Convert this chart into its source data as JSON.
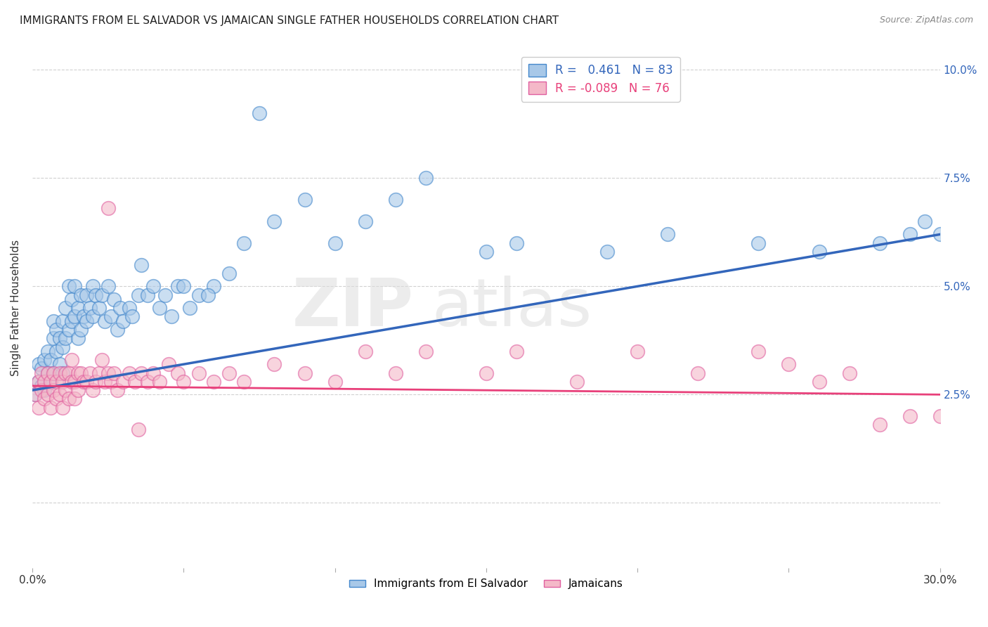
{
  "title": "IMMIGRANTS FROM EL SALVADOR VS JAMAICAN SINGLE FATHER HOUSEHOLDS CORRELATION CHART",
  "source": "Source: ZipAtlas.com",
  "ylabel": "Single Father Households",
  "xlim": [
    0.0,
    0.3
  ],
  "ylim": [
    -0.015,
    0.105
  ],
  "blue_color": "#a8c8e8",
  "pink_color": "#f4b8c8",
  "blue_edge_color": "#4488cc",
  "pink_edge_color": "#e060a0",
  "blue_line_color": "#3366bb",
  "pink_line_color": "#e8407a",
  "legend_blue_label": "R =   0.461   N = 83",
  "legend_pink_label": "R = -0.089   N = 76",
  "legend_blue_series": "Immigrants from El Salvador",
  "legend_pink_series": "Jamaicans",
  "watermark": "ZIPatlas",
  "blue_line_x0": 0.0,
  "blue_line_y0": 0.026,
  "blue_line_x1": 0.3,
  "blue_line_y1": 0.062,
  "pink_line_x0": 0.0,
  "pink_line_y0": 0.027,
  "pink_line_x1": 0.3,
  "pink_line_y1": 0.025,
  "blue_scatter_x": [
    0.001,
    0.002,
    0.002,
    0.003,
    0.003,
    0.004,
    0.004,
    0.005,
    0.005,
    0.006,
    0.006,
    0.007,
    0.007,
    0.007,
    0.008,
    0.008,
    0.009,
    0.009,
    0.01,
    0.01,
    0.01,
    0.011,
    0.011,
    0.012,
    0.012,
    0.013,
    0.013,
    0.014,
    0.014,
    0.015,
    0.015,
    0.016,
    0.016,
    0.017,
    0.018,
    0.018,
    0.019,
    0.02,
    0.02,
    0.021,
    0.022,
    0.023,
    0.024,
    0.025,
    0.026,
    0.027,
    0.028,
    0.029,
    0.03,
    0.032,
    0.033,
    0.035,
    0.036,
    0.038,
    0.04,
    0.042,
    0.044,
    0.046,
    0.048,
    0.05,
    0.055,
    0.06,
    0.065,
    0.07,
    0.08,
    0.09,
    0.1,
    0.11,
    0.12,
    0.13,
    0.15,
    0.16,
    0.19,
    0.21,
    0.24,
    0.26,
    0.28,
    0.29,
    0.295,
    0.3,
    0.052,
    0.058,
    0.075
  ],
  "blue_scatter_y": [
    0.025,
    0.028,
    0.032,
    0.027,
    0.031,
    0.026,
    0.033,
    0.03,
    0.035,
    0.028,
    0.033,
    0.03,
    0.038,
    0.042,
    0.035,
    0.04,
    0.032,
    0.038,
    0.03,
    0.036,
    0.042,
    0.038,
    0.045,
    0.04,
    0.05,
    0.042,
    0.047,
    0.043,
    0.05,
    0.038,
    0.045,
    0.04,
    0.048,
    0.043,
    0.042,
    0.048,
    0.045,
    0.05,
    0.043,
    0.048,
    0.045,
    0.048,
    0.042,
    0.05,
    0.043,
    0.047,
    0.04,
    0.045,
    0.042,
    0.045,
    0.043,
    0.048,
    0.055,
    0.048,
    0.05,
    0.045,
    0.048,
    0.043,
    0.05,
    0.05,
    0.048,
    0.05,
    0.053,
    0.06,
    0.065,
    0.07,
    0.06,
    0.065,
    0.07,
    0.075,
    0.058,
    0.06,
    0.058,
    0.062,
    0.06,
    0.058,
    0.06,
    0.062,
    0.065,
    0.062,
    0.045,
    0.048,
    0.09
  ],
  "pink_scatter_x": [
    0.001,
    0.002,
    0.002,
    0.003,
    0.003,
    0.004,
    0.004,
    0.005,
    0.005,
    0.006,
    0.006,
    0.007,
    0.007,
    0.008,
    0.008,
    0.009,
    0.009,
    0.01,
    0.01,
    0.011,
    0.011,
    0.012,
    0.012,
    0.013,
    0.013,
    0.014,
    0.014,
    0.015,
    0.015,
    0.016,
    0.017,
    0.018,
    0.019,
    0.02,
    0.021,
    0.022,
    0.023,
    0.024,
    0.025,
    0.026,
    0.027,
    0.028,
    0.03,
    0.032,
    0.034,
    0.036,
    0.038,
    0.04,
    0.042,
    0.045,
    0.048,
    0.05,
    0.055,
    0.06,
    0.065,
    0.07,
    0.08,
    0.09,
    0.1,
    0.11,
    0.12,
    0.13,
    0.15,
    0.16,
    0.18,
    0.2,
    0.22,
    0.24,
    0.25,
    0.26,
    0.27,
    0.28,
    0.29,
    0.3,
    0.025,
    0.035
  ],
  "pink_scatter_y": [
    0.025,
    0.028,
    0.022,
    0.03,
    0.026,
    0.028,
    0.024,
    0.03,
    0.025,
    0.028,
    0.022,
    0.03,
    0.026,
    0.028,
    0.024,
    0.03,
    0.025,
    0.028,
    0.022,
    0.03,
    0.026,
    0.03,
    0.024,
    0.028,
    0.033,
    0.028,
    0.024,
    0.03,
    0.026,
    0.03,
    0.028,
    0.028,
    0.03,
    0.026,
    0.028,
    0.03,
    0.033,
    0.028,
    0.03,
    0.028,
    0.03,
    0.026,
    0.028,
    0.03,
    0.028,
    0.03,
    0.028,
    0.03,
    0.028,
    0.032,
    0.03,
    0.028,
    0.03,
    0.028,
    0.03,
    0.028,
    0.032,
    0.03,
    0.028,
    0.035,
    0.03,
    0.035,
    0.03,
    0.035,
    0.028,
    0.035,
    0.03,
    0.035,
    0.032,
    0.028,
    0.03,
    0.018,
    0.02,
    0.02,
    0.068,
    0.017
  ]
}
